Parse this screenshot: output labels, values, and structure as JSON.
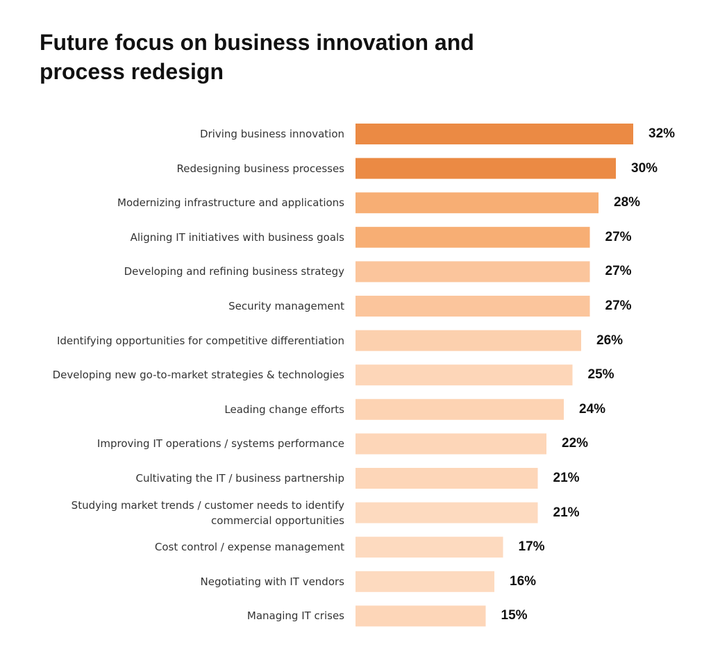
{
  "chart_data": {
    "type": "bar",
    "orientation": "horizontal",
    "title": "Future focus on business innovation and process redesign",
    "categories": [
      "Driving business innovation",
      "Redesigning business processes",
      "Modernizing infrastructure and applications",
      "Aligning IT initiatives with business goals",
      "Developing and refining business strategy",
      "Security management",
      "Identifying opportunities for competitive differentiation",
      "Developing new go-to-market strategies & technologies",
      "Leading change efforts",
      "Improving IT operations / systems performance",
      "Cultivating the IT / business partnership",
      "Studying market trends / customer needs to identify\ncommercial opportunities",
      "Cost control / expense management",
      "Negotiating with IT vendors",
      "Managing IT crises"
    ],
    "values": [
      32,
      30,
      28,
      27,
      27,
      27,
      26,
      25,
      24,
      22,
      21,
      21,
      17,
      16,
      15
    ],
    "value_labels": [
      "32%",
      "30%",
      "28%",
      "27%",
      "27%",
      "27%",
      "26%",
      "25%",
      "24%",
      "22%",
      "21%",
      "21%",
      "17%",
      "16%",
      "15%"
    ],
    "colors": [
      "#eb8a44",
      "#eb8a44",
      "#f7ae74",
      "#f7ae74",
      "#fbc59c",
      "#fbc59c",
      "#fcd0ae",
      "#fdd6b8",
      "#fdd3b3",
      "#fdd6b8",
      "#fdd6b8",
      "#fddabf",
      "#fddabf",
      "#fddabf",
      "#fdd6b8"
    ]
  }
}
